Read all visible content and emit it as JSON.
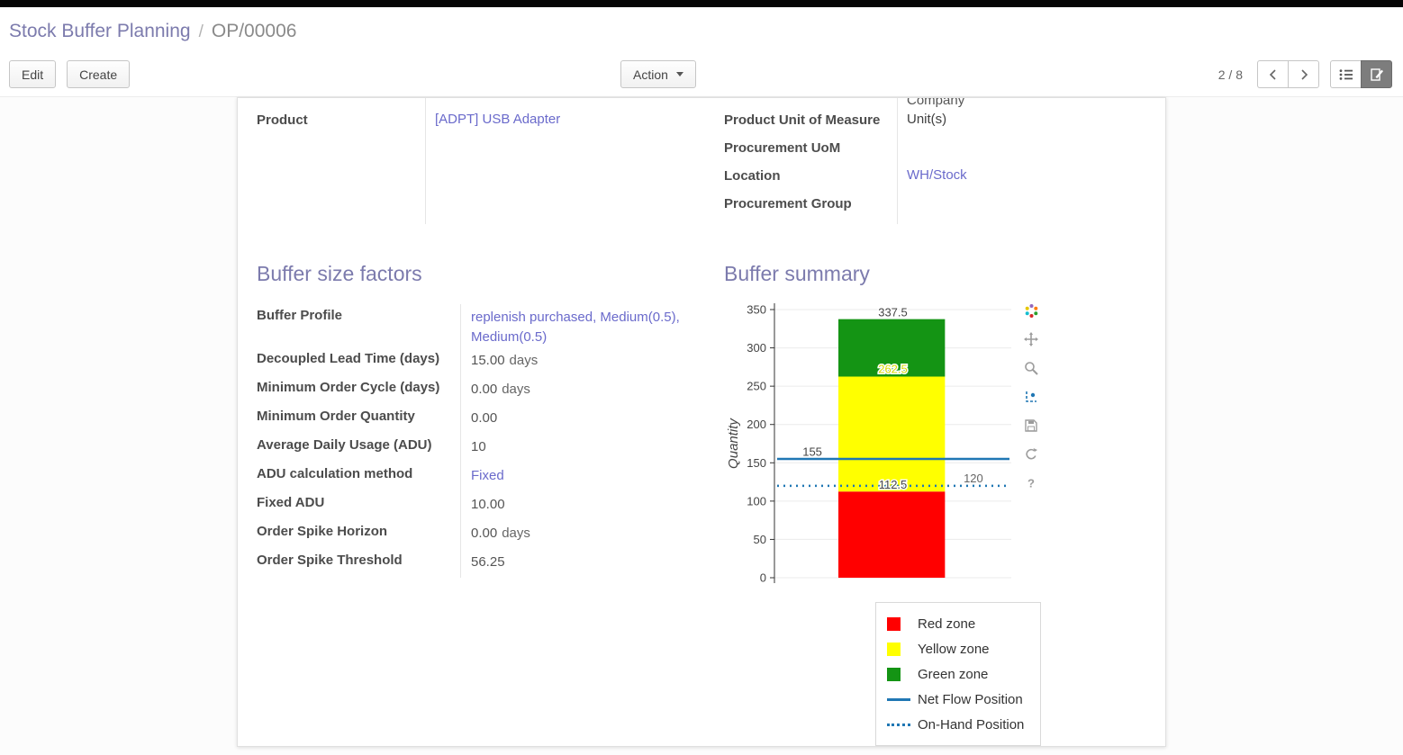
{
  "breadcrumb": {
    "parent": "Stock Buffer Planning",
    "separator": "/",
    "current": "OP/00006"
  },
  "control_panel": {
    "edit": "Edit",
    "create": "Create",
    "action": "Action",
    "pager": "2 / 8"
  },
  "fields": {
    "product": {
      "label": "Product",
      "value": "[ADPT] USB Adapter"
    },
    "company_partial": "Company",
    "uom": {
      "label": "Product Unit of Measure",
      "value": "Unit(s)"
    },
    "procurement_uom": {
      "label": "Procurement UoM",
      "value": ""
    },
    "location": {
      "label": "Location",
      "value": "WH/Stock"
    },
    "procurement_group": {
      "label": "Procurement Group",
      "value": ""
    }
  },
  "buffer_factors": {
    "title": "Buffer size factors",
    "rows": [
      {
        "label": "Buffer Profile",
        "value": "replenish purchased, Medium(0.5), Medium(0.5)",
        "link": true
      },
      {
        "label": "Decoupled Lead Time (days)",
        "value": "15.00",
        "suffix": "days"
      },
      {
        "label": "Minimum Order Cycle (days)",
        "value": "0.00",
        "suffix": "days"
      },
      {
        "label": "Minimum Order Quantity",
        "value": "0.00"
      },
      {
        "label": "Average Daily Usage (ADU)",
        "value": "10"
      },
      {
        "label": "ADU calculation method",
        "value": "Fixed",
        "link": true
      },
      {
        "label": "Fixed ADU",
        "value": "10.00"
      },
      {
        "label": "Order Spike Horizon",
        "value": "0.00",
        "suffix": "days"
      },
      {
        "label": "Order Spike Threshold",
        "value": "56.25"
      }
    ]
  },
  "buffer_summary": {
    "title": "Buffer summary"
  },
  "chart_data": {
    "type": "bar",
    "title": "Buffer summary",
    "xlabel": "",
    "ylabel": "Quantity",
    "ylim": [
      0,
      350
    ],
    "yticks": [
      0,
      50,
      100,
      150,
      200,
      250,
      300,
      350
    ],
    "grid": true,
    "legend_position": "bottom-right",
    "zones": [
      {
        "name": "Red zone",
        "from": 0,
        "to": 112.5,
        "color": "#ff0000"
      },
      {
        "name": "Yellow zone",
        "from": 112.5,
        "to": 262.5,
        "color": "#ffff00"
      },
      {
        "name": "Green zone",
        "from": 262.5,
        "to": 337.5,
        "color": "#149414"
      }
    ],
    "lines": [
      {
        "name": "Net Flow Position",
        "value": 155,
        "style": "solid",
        "color": "#2077b4"
      },
      {
        "name": "On-Hand Position",
        "value": 120,
        "style": "dotted",
        "color": "#2077b4"
      }
    ],
    "annotations": [
      {
        "text": "337.5",
        "y": 346,
        "xf": 0.5,
        "color": "#444444"
      },
      {
        "text": "262.5",
        "y": 272,
        "xf": 0.5,
        "color": "#d8d800"
      },
      {
        "text": "155",
        "y": 164,
        "xf": 0.16,
        "color": "#444444"
      },
      {
        "text": "112.5",
        "y": 121,
        "xf": 0.5,
        "color": "#444444"
      },
      {
        "text": "120",
        "y": 129,
        "xf": 0.84,
        "color": "#666666"
      }
    ]
  }
}
